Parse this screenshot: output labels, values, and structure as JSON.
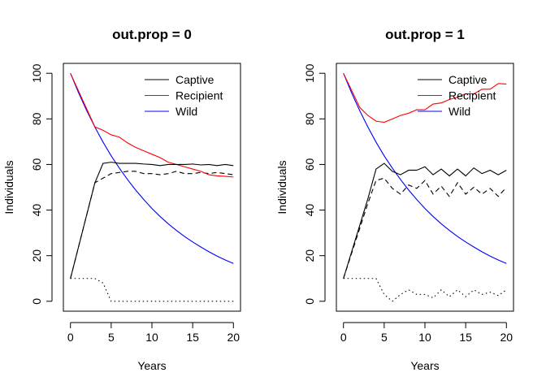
{
  "chart_data": [
    {
      "type": "line",
      "title": "out.prop = 0",
      "xlabel": "Years",
      "ylabel": "Individuals",
      "xlim": [
        0,
        20
      ],
      "ylim": [
        0,
        100
      ],
      "xticks": [
        0,
        5,
        10,
        15,
        20
      ],
      "yticks": [
        0,
        20,
        40,
        60,
        80,
        100
      ],
      "legend_position": "top-right",
      "x": [
        0,
        1,
        2,
        3,
        4,
        5,
        6,
        7,
        8,
        9,
        10,
        11,
        12,
        13,
        14,
        15,
        16,
        17,
        18,
        19,
        20
      ],
      "series": [
        {
          "name": "Captive",
          "color": "#000000",
          "dash": "solid",
          "in_legend": true,
          "values": [
            10,
            null,
            null,
            52,
            60.5,
            61,
            60.5,
            60.5,
            60.5,
            60.2,
            60,
            59.5,
            60,
            60,
            60,
            60.2,
            59.8,
            60,
            59.5,
            60,
            59.5
          ]
        },
        {
          "name": "Recipient",
          "color": "#ff0000",
          "dash": "solid",
          "in_legend": true,
          "values": [
            100,
            null,
            null,
            76.5,
            75,
            73,
            72,
            69.5,
            67.5,
            66,
            64.5,
            63,
            61,
            60,
            59,
            58,
            57,
            55.5,
            55,
            54.8,
            54.5
          ]
        },
        {
          "name": "Wild",
          "color": "#0000ff",
          "dash": "solid",
          "in_legend": true,
          "values": [
            100,
            91.4,
            83.6,
            76.4,
            69.8,
            63.8,
            58.4,
            53.4,
            48.8,
            44.6,
            40.7,
            37.2,
            34.0,
            31.1,
            28.4,
            26.0,
            23.8,
            21.7,
            19.8,
            18.1,
            16.6
          ]
        },
        {
          "name": "",
          "color": "#000000",
          "dash": "dashed",
          "in_legend": false,
          "values": [
            10,
            null,
            null,
            52,
            54,
            56,
            56.5,
            57,
            57,
            56,
            56,
            55.5,
            56,
            57,
            56,
            56,
            56.5,
            56,
            56.5,
            56,
            55.5
          ]
        },
        {
          "name": "",
          "color": "#000000",
          "dash": "dotted",
          "in_legend": false,
          "values": [
            10,
            10,
            10,
            10,
            8,
            0,
            0,
            0,
            0,
            0,
            0,
            0,
            0,
            0,
            0,
            0,
            0,
            0,
            0,
            0,
            0
          ]
        }
      ]
    },
    {
      "type": "line",
      "title": "out.prop = 1",
      "xlabel": "Years",
      "ylabel": "Individuals",
      "xlim": [
        0,
        20
      ],
      "ylim": [
        0,
        100
      ],
      "xticks": [
        0,
        5,
        10,
        15,
        20
      ],
      "yticks": [
        0,
        20,
        40,
        60,
        80,
        100
      ],
      "legend_position": "top-right",
      "x": [
        0,
        1,
        2,
        3,
        4,
        5,
        6,
        7,
        8,
        9,
        10,
        11,
        12,
        13,
        14,
        15,
        16,
        17,
        18,
        19,
        20
      ],
      "series": [
        {
          "name": "Captive",
          "color": "#000000",
          "dash": "solid",
          "in_legend": true,
          "values": [
            10,
            null,
            null,
            45,
            58,
            60.5,
            57,
            55.5,
            57.5,
            57.5,
            59,
            55.5,
            58,
            55,
            58,
            55,
            58.5,
            56,
            57.5,
            55.5,
            57.5
          ]
        },
        {
          "name": "Recipient",
          "color": "#ff0000",
          "dash": "solid",
          "in_legend": true,
          "values": [
            100,
            null,
            85,
            81.5,
            79,
            78.5,
            80,
            81.5,
            82.5,
            84,
            84,
            86.5,
            87,
            88.5,
            89.5,
            91,
            91,
            93,
            93,
            95.5,
            95.3
          ]
        },
        {
          "name": "Wild",
          "color": "#0000ff",
          "dash": "solid",
          "in_legend": true,
          "values": [
            100,
            91.4,
            83.6,
            76.4,
            69.8,
            63.8,
            58.4,
            53.4,
            48.8,
            44.6,
            40.7,
            37.2,
            34.0,
            31.1,
            28.4,
            26.0,
            23.8,
            21.7,
            19.8,
            18.1,
            16.6
          ]
        },
        {
          "name": "",
          "color": "#000000",
          "dash": "dashed",
          "in_legend": false,
          "values": [
            10,
            null,
            null,
            43,
            53,
            54,
            49.5,
            47,
            51,
            49.5,
            53,
            47,
            50.5,
            46,
            52,
            47,
            50,
            47,
            49.5,
            46,
            50
          ]
        },
        {
          "name": "",
          "color": "#000000",
          "dash": "dotted",
          "in_legend": false,
          "values": [
            10,
            10,
            10,
            10,
            10,
            3,
            0,
            3,
            5,
            3,
            3,
            1.5,
            5,
            2,
            5,
            2,
            5,
            3,
            4,
            2.5,
            5
          ]
        }
      ]
    }
  ]
}
